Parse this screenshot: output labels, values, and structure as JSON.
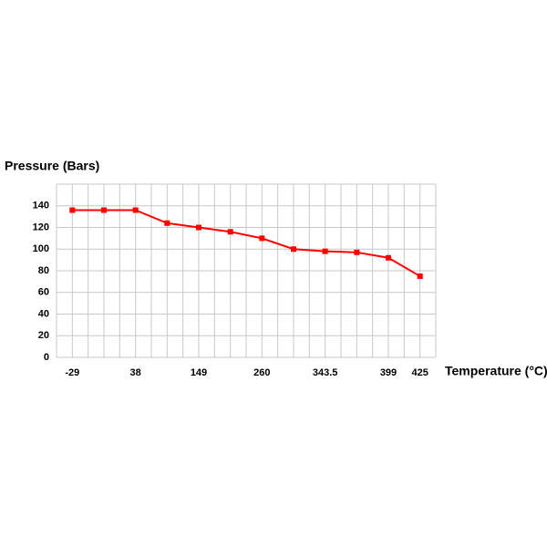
{
  "chart_data": {
    "type": "line",
    "y_label": "Pressure (Bars)",
    "x_label": "Temperature (°C)",
    "categories": [
      "-29",
      null,
      "38",
      null,
      "149",
      null,
      "260",
      null,
      "343.5",
      null,
      "399",
      "425"
    ],
    "series": [
      {
        "color": "#ff0000",
        "values": [
          136,
          136,
          136,
          124,
          120,
          116,
          110,
          100,
          98,
          97,
          92,
          75
        ]
      }
    ],
    "ylim": [
      0,
      160
    ],
    "yticks": [
      0,
      20,
      40,
      60,
      80,
      100,
      120,
      140
    ],
    "grid": true
  }
}
